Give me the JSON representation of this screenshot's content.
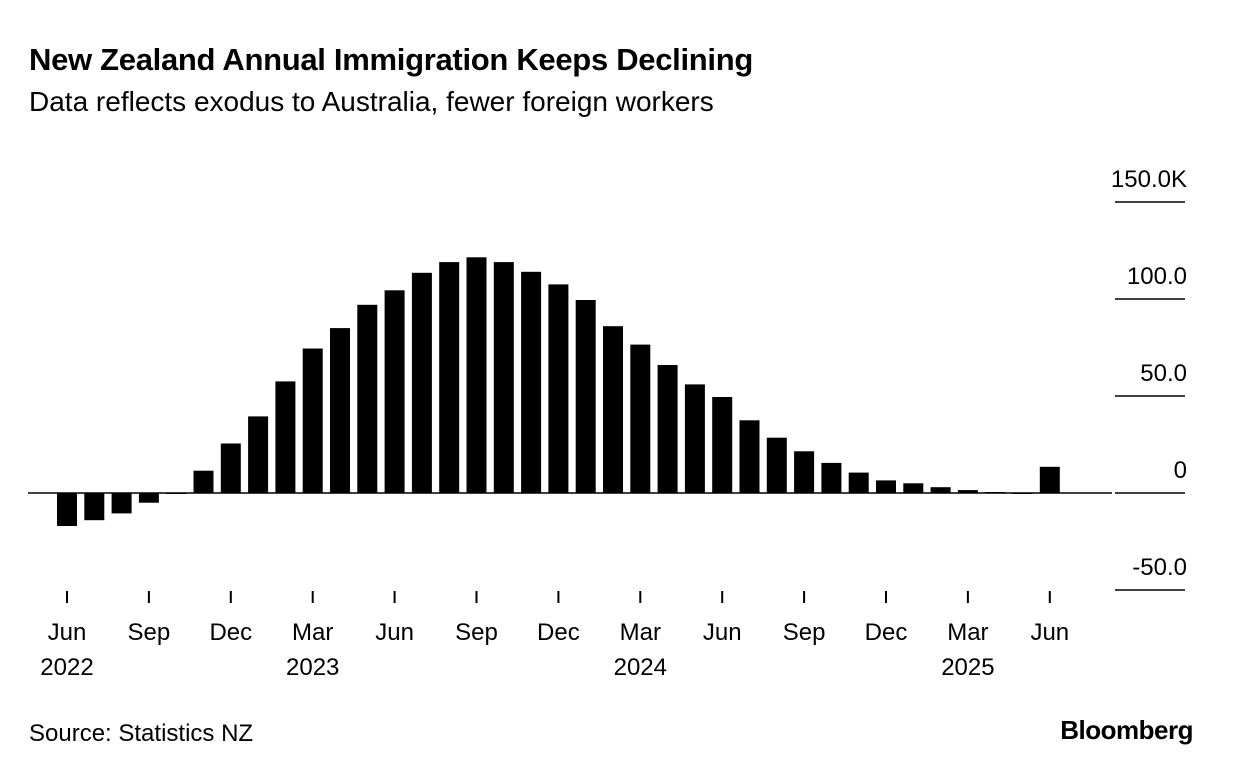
{
  "header": {
    "title": "New Zealand Annual Immigration Keeps Declining",
    "subtitle": "Data reflects exodus to Australia, fewer foreign workers"
  },
  "footer": {
    "source": "Source: Statistics NZ",
    "brand": "Bloomberg"
  },
  "colors": {
    "bar": "#000000",
    "axis": "#000000",
    "background": "#ffffff"
  },
  "chart_data": {
    "type": "bar",
    "title": "New Zealand Annual Immigration Keeps Declining",
    "subtitle": "Data reflects exodus to Australia, fewer foreign workers",
    "xlabel": "",
    "ylabel": "",
    "ylim": [
      -50,
      150
    ],
    "y_ticks": [
      150,
      100,
      50,
      0,
      -50
    ],
    "y_tick_labels": [
      "150.0K",
      "100.0",
      "50.0",
      "0",
      "-50.0"
    ],
    "y_axis_side": "right",
    "grid": false,
    "legend": "none",
    "categories": [
      "2022-06",
      "2022-07",
      "2022-08",
      "2022-09",
      "2022-10",
      "2022-11",
      "2022-12",
      "2023-01",
      "2023-02",
      "2023-03",
      "2023-04",
      "2023-05",
      "2023-06",
      "2023-07",
      "2023-08",
      "2023-09",
      "2023-10",
      "2023-11",
      "2023-12",
      "2024-01",
      "2024-02",
      "2024-03",
      "2024-04",
      "2024-05",
      "2024-06",
      "2024-07",
      "2024-08",
      "2024-09",
      "2024-10",
      "2024-11",
      "2024-12",
      "2025-01",
      "2025-02",
      "2025-03",
      "2025-04",
      "2025-05",
      "2025-06"
    ],
    "values": [
      -17,
      -14,
      -10.5,
      -5,
      -0.5,
      11.5,
      25.5,
      39.5,
      57.5,
      74.5,
      85,
      97,
      104.5,
      113.5,
      119,
      121.5,
      119,
      114,
      107.5,
      99.5,
      86,
      76.5,
      66,
      56,
      49.5,
      37.5,
      28.5,
      21.5,
      15.5,
      10.5,
      6.5,
      5,
      3,
      1.5,
      0.5,
      0,
      13.5
    ],
    "x_ticks": [
      {
        "category": "2022-06",
        "month": "Jun",
        "year": "2022"
      },
      {
        "category": "2022-09",
        "month": "Sep",
        "year": ""
      },
      {
        "category": "2022-12",
        "month": "Dec",
        "year": ""
      },
      {
        "category": "2023-03",
        "month": "Mar",
        "year": "2023"
      },
      {
        "category": "2023-06",
        "month": "Jun",
        "year": ""
      },
      {
        "category": "2023-09",
        "month": "Sep",
        "year": ""
      },
      {
        "category": "2023-12",
        "month": "Dec",
        "year": ""
      },
      {
        "category": "2024-03",
        "month": "Mar",
        "year": "2024"
      },
      {
        "category": "2024-06",
        "month": "Jun",
        "year": ""
      },
      {
        "category": "2024-09",
        "month": "Sep",
        "year": ""
      },
      {
        "category": "2024-12",
        "month": "Dec",
        "year": ""
      },
      {
        "category": "2025-03",
        "month": "Mar",
        "year": "2025"
      },
      {
        "category": "2025-06",
        "month": "Jun",
        "year": ""
      }
    ]
  }
}
